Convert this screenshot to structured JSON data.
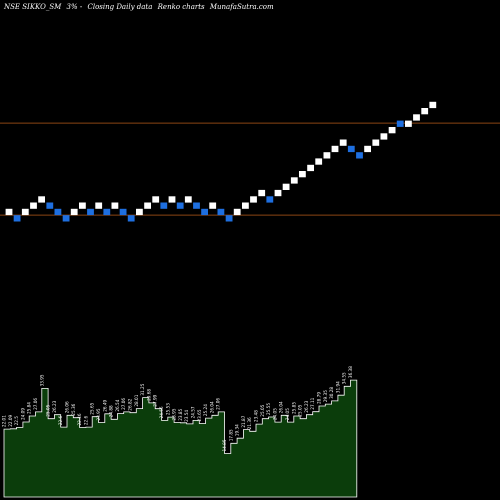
{
  "header": {
    "symbol": "NSE SIKKO_SM",
    "box": "3% -",
    "mode": "Closing Daily data",
    "chart_kind": "Renko charts",
    "site": "MunafaSutra.com"
  },
  "colors": {
    "background": "#000000",
    "up_brick": "#ffffff",
    "down_brick": "#1e6fe0",
    "ref_line": "#8b4513",
    "volume_fill": "#0b3d0b",
    "volume_stroke": "#ffffff"
  },
  "chart_data": [
    {
      "type": "renko",
      "box_size_percent": 3,
      "reference_lines": [
        1.0,
        0.0
      ],
      "bricks": [
        {
          "level": 0,
          "dir": "up"
        },
        {
          "level": -1,
          "dir": "down"
        },
        {
          "level": 0,
          "dir": "up"
        },
        {
          "level": 1,
          "dir": "up"
        },
        {
          "level": 2,
          "dir": "up"
        },
        {
          "level": 1,
          "dir": "down"
        },
        {
          "level": 0,
          "dir": "down"
        },
        {
          "level": -1,
          "dir": "down"
        },
        {
          "level": 0,
          "dir": "up"
        },
        {
          "level": 1,
          "dir": "up"
        },
        {
          "level": 0,
          "dir": "down"
        },
        {
          "level": 1,
          "dir": "up"
        },
        {
          "level": 0,
          "dir": "down"
        },
        {
          "level": 1,
          "dir": "up"
        },
        {
          "level": 0,
          "dir": "down"
        },
        {
          "level": -1,
          "dir": "down"
        },
        {
          "level": 0,
          "dir": "up"
        },
        {
          "level": 1,
          "dir": "up"
        },
        {
          "level": 2,
          "dir": "up"
        },
        {
          "level": 1,
          "dir": "down"
        },
        {
          "level": 2,
          "dir": "up"
        },
        {
          "level": 1,
          "dir": "down"
        },
        {
          "level": 2,
          "dir": "up"
        },
        {
          "level": 1,
          "dir": "down"
        },
        {
          "level": 0,
          "dir": "down"
        },
        {
          "level": 1,
          "dir": "up"
        },
        {
          "level": 0,
          "dir": "down"
        },
        {
          "level": -1,
          "dir": "down"
        },
        {
          "level": 0,
          "dir": "up"
        },
        {
          "level": 1,
          "dir": "up"
        },
        {
          "level": 2,
          "dir": "up"
        },
        {
          "level": 3,
          "dir": "up"
        },
        {
          "level": 2,
          "dir": "down"
        },
        {
          "level": 3,
          "dir": "up"
        },
        {
          "level": 4,
          "dir": "up"
        },
        {
          "level": 5,
          "dir": "up"
        },
        {
          "level": 6,
          "dir": "up"
        },
        {
          "level": 7,
          "dir": "up"
        },
        {
          "level": 8,
          "dir": "up"
        },
        {
          "level": 9,
          "dir": "up"
        },
        {
          "level": 10,
          "dir": "up"
        },
        {
          "level": 11,
          "dir": "up"
        },
        {
          "level": 10,
          "dir": "down"
        },
        {
          "level": 9,
          "dir": "down"
        },
        {
          "level": 10,
          "dir": "up"
        },
        {
          "level": 11,
          "dir": "up"
        },
        {
          "level": 12,
          "dir": "up"
        },
        {
          "level": 13,
          "dir": "up"
        },
        {
          "level": 14,
          "dir": "down"
        },
        {
          "level": 14,
          "dir": "up"
        },
        {
          "level": 15,
          "dir": "up"
        },
        {
          "level": 16,
          "dir": "up"
        },
        {
          "level": 17,
          "dir": "up"
        }
      ]
    },
    {
      "type": "area",
      "series_name": "",
      "labels": [
        "22.01",
        "22.09",
        "22.5",
        "24.09",
        "25.84",
        "27.06",
        "33.95",
        "25.05",
        "26.23",
        "22.6",
        "26.06",
        "25.36",
        "22.46",
        "22.6",
        "25.65",
        "23.95",
        "26.49",
        "24.88",
        "26.54",
        "27.06",
        "26.82",
        "28.01",
        "31.25",
        "29.68",
        "27.99",
        "24.56",
        "25.53",
        "23.95",
        "23.85",
        "23.54",
        "24.57",
        "23.65",
        "25.24",
        "26.04",
        "27.06",
        "14.85",
        "17.85",
        "19.34",
        "21.87",
        "21.36",
        "23.48",
        "25.05",
        "25.55",
        "24.05",
        "26.04",
        "24.05",
        "25.85",
        "25.05",
        "26.23",
        "27.11",
        "28.79",
        "29.35",
        "30.28",
        "31.94",
        "34.55",
        "36.38"
      ],
      "values": [
        22.01,
        22.09,
        22.5,
        24.09,
        25.84,
        27.06,
        33.95,
        25.05,
        26.23,
        22.6,
        26.06,
        25.36,
        22.46,
        22.6,
        25.65,
        23.95,
        26.49,
        24.88,
        26.54,
        27.06,
        26.82,
        28.01,
        31.25,
        29.68,
        27.99,
        24.56,
        25.53,
        23.95,
        23.85,
        23.54,
        24.57,
        23.65,
        25.24,
        26.04,
        27.06,
        14.85,
        17.85,
        19.34,
        21.87,
        21.36,
        23.48,
        25.05,
        25.55,
        24.05,
        26.04,
        24.05,
        25.85,
        25.05,
        26.23,
        27.11,
        28.79,
        29.35,
        30.28,
        31.94,
        34.55,
        36.38
      ],
      "ylim": [
        10,
        37
      ],
      "gap_after_index": 34
    }
  ]
}
